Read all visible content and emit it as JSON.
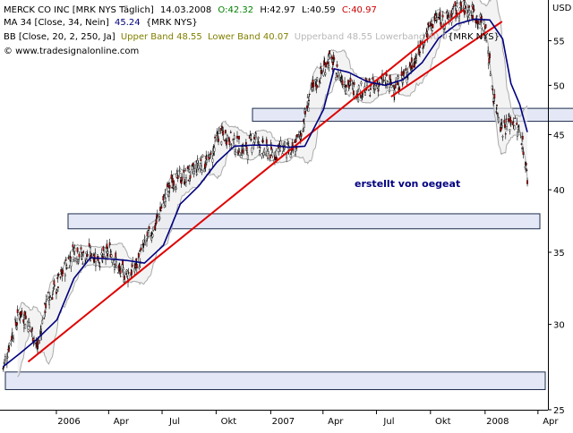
{
  "header": {
    "line1": {
      "name": "MERCK CO INC [MRK NYS  Täglich]",
      "date": "14.03.2008",
      "open_label": "O:",
      "open": "42.32",
      "high_label": "H:",
      "high": "42.97",
      "low_label": "L:",
      "low": "40.59",
      "close_label": "C:",
      "close": "40.97"
    },
    "line2": {
      "indicator": "MA 34 [Close, 34, Nein]",
      "value": "45.24",
      "symbol": "{MRK NYS}"
    },
    "line3": {
      "indicator": "BB [Close, 20, 2, 250, Ja]",
      "upper": "Upper Band 48.55",
      "lower": "Lower Band 40.07",
      "ghost": "Upperband 48.55 Lowerband 40.07",
      "symbol": "{MRK NYS}"
    },
    "copyright": "© www.tradesignalonline.com"
  },
  "colors": {
    "green": "#008000",
    "red": "#cc0000",
    "olive": "#808000",
    "ma": "#000080",
    "trend": "#e00000",
    "band_fill": "#e4e8f6",
    "band_border": "#1c2b4a",
    "bollinger": "#aaaaaa",
    "annotation": "#000080"
  },
  "annotation": "erstellt von oegeat",
  "chart_data": {
    "type": "line",
    "title": "MERCK CO INC [MRK NYS  Täglich]",
    "currency": "USD",
    "y_scale": "log",
    "ylim": [
      25,
      60
    ],
    "y_ticks": [
      25,
      30,
      35,
      40,
      45,
      50,
      55
    ],
    "xlim": [
      "2005-09-28",
      "2008-04-18"
    ],
    "x_ticks": [
      {
        "label": "2006",
        "date": "2006-01-02"
      },
      {
        "label": "Apr",
        "date": "2006-04-01"
      },
      {
        "label": "Jul",
        "date": "2006-07-01"
      },
      {
        "label": "Okt",
        "date": "2006-10-01"
      },
      {
        "label": "2007",
        "date": "2007-01-02"
      },
      {
        "label": "Apr",
        "date": "2007-04-01"
      },
      {
        "label": "Jul",
        "date": "2007-07-01"
      },
      {
        "label": "Okt",
        "date": "2007-10-01"
      },
      {
        "label": "2008",
        "date": "2008-01-02"
      },
      {
        "label": "Apr",
        "date": "2008-04-01"
      }
    ],
    "price": [
      [
        "2005-10-03",
        27.3
      ],
      [
        "2005-10-18",
        29.3
      ],
      [
        "2005-11-02",
        30.8
      ],
      [
        "2005-11-17",
        30.0
      ],
      [
        "2005-12-01",
        28.5
      ],
      [
        "2005-12-16",
        31.5
      ],
      [
        "2006-01-03",
        32.5
      ],
      [
        "2006-01-18",
        34.0
      ],
      [
        "2006-02-02",
        35.2
      ],
      [
        "2006-02-17",
        34.6
      ],
      [
        "2006-03-03",
        35.0
      ],
      [
        "2006-03-20",
        34.4
      ],
      [
        "2006-04-04",
        35.2
      ],
      [
        "2006-04-19",
        33.6
      ],
      [
        "2006-05-04",
        33.4
      ],
      [
        "2006-05-19",
        34.1
      ],
      [
        "2006-06-05",
        35.9
      ],
      [
        "2006-06-20",
        37.1
      ],
      [
        "2006-07-05",
        39.2
      ],
      [
        "2006-07-20",
        40.8
      ],
      [
        "2006-08-04",
        41.0
      ],
      [
        "2006-08-21",
        41.4
      ],
      [
        "2006-09-05",
        42.4
      ],
      [
        "2006-09-20",
        42.4
      ],
      [
        "2006-10-05",
        45.0
      ],
      [
        "2006-10-20",
        44.8
      ],
      [
        "2006-11-06",
        43.9
      ],
      [
        "2006-11-21",
        43.6
      ],
      [
        "2006-12-06",
        44.8
      ],
      [
        "2006-12-21",
        43.5
      ],
      [
        "2007-01-08",
        43.2
      ],
      [
        "2007-01-23",
        43.8
      ],
      [
        "2007-02-07",
        43.2
      ],
      [
        "2007-02-22",
        45.0
      ],
      [
        "2007-03-09",
        48.9
      ],
      [
        "2007-03-26",
        50.8
      ],
      [
        "2007-04-10",
        53.0
      ],
      [
        "2007-04-25",
        51.5
      ],
      [
        "2007-05-10",
        50.3
      ],
      [
        "2007-05-25",
        49.5
      ],
      [
        "2007-06-11",
        49.6
      ],
      [
        "2007-06-26",
        49.8
      ],
      [
        "2007-07-11",
        50.4
      ],
      [
        "2007-07-26",
        50.0
      ],
      [
        "2007-08-10",
        50.2
      ],
      [
        "2007-08-27",
        51.9
      ],
      [
        "2007-09-11",
        53.7
      ],
      [
        "2007-09-26",
        56.1
      ],
      [
        "2007-10-11",
        57.7
      ],
      [
        "2007-10-26",
        57.3
      ],
      [
        "2007-11-12",
        58.5
      ],
      [
        "2007-11-27",
        59.0
      ],
      [
        "2007-12-12",
        58.5
      ],
      [
        "2008-01-02",
        56.5
      ],
      [
        "2008-01-17",
        48.5
      ],
      [
        "2008-02-01",
        45.6
      ],
      [
        "2008-02-18",
        46.4
      ],
      [
        "2008-03-04",
        44.8
      ],
      [
        "2008-03-14",
        40.97
      ]
    ],
    "ma34": [
      [
        "2005-10-03",
        27.4
      ],
      [
        "2005-11-01",
        28.2
      ],
      [
        "2005-12-01",
        29.1
      ],
      [
        "2006-01-03",
        30.3
      ],
      [
        "2006-02-01",
        33.1
      ],
      [
        "2006-03-01",
        34.6
      ],
      [
        "2006-04-03",
        34.5
      ],
      [
        "2006-05-01",
        34.4
      ],
      [
        "2006-06-01",
        34.2
      ],
      [
        "2006-07-03",
        35.5
      ],
      [
        "2006-08-01",
        38.8
      ],
      [
        "2006-09-01",
        40.3
      ],
      [
        "2006-10-02",
        42.4
      ],
      [
        "2006-11-01",
        43.9
      ],
      [
        "2006-12-01",
        44.0
      ],
      [
        "2007-01-02",
        44.0
      ],
      [
        "2007-02-01",
        43.8
      ],
      [
        "2007-03-01",
        43.9
      ],
      [
        "2007-04-02",
        47.5
      ],
      [
        "2007-04-20",
        51.8
      ],
      [
        "2007-05-15",
        51.4
      ],
      [
        "2007-06-15",
        50.4
      ],
      [
        "2007-07-16",
        50.0
      ],
      [
        "2007-08-15",
        50.6
      ],
      [
        "2007-09-17",
        52.5
      ],
      [
        "2007-10-15",
        55.3
      ],
      [
        "2007-11-15",
        57.0
      ],
      [
        "2007-12-15",
        57.6
      ],
      [
        "2008-01-10",
        57.5
      ],
      [
        "2008-02-01",
        55.2
      ],
      [
        "2008-02-15",
        50.2
      ],
      [
        "2008-03-01",
        48.0
      ],
      [
        "2008-03-14",
        45.24
      ]
    ],
    "bollinger_upper": "48.55",
    "bollinger_lower": "40.07",
    "trendlines": [
      {
        "from": [
          "2005-11-15",
          27.7
        ],
        "to": [
          "2007-11-27",
          58.8
        ]
      },
      {
        "from": [
          "2007-07-26",
          48.8
        ],
        "to": [
          "2008-01-31",
          57.3
        ]
      }
    ],
    "zones": [
      {
        "from": 26.1,
        "to": 27.1
      },
      {
        "from": 36.8,
        "to": 38.0
      },
      {
        "from": 46.3,
        "to": 47.6
      }
    ]
  }
}
